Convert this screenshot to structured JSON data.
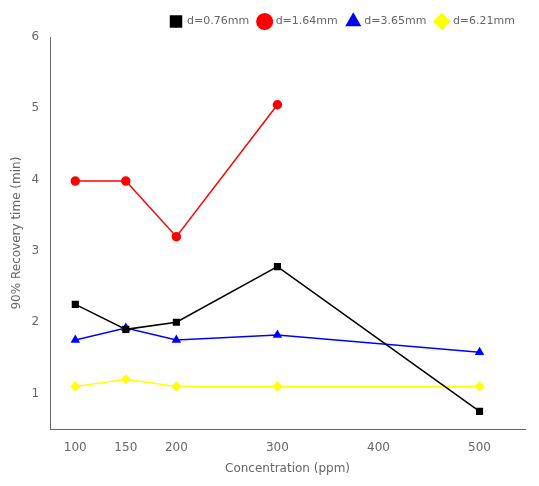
{
  "chart_data": {
    "type": "line",
    "x": [
      100,
      150,
      200,
      300,
      500
    ],
    "series": [
      {
        "name": "d=0.76mm",
        "color": "#000000",
        "marker": "square",
        "values": [
          2.25,
          1.9,
          2.0,
          2.78,
          0.75
        ]
      },
      {
        "name": "d=1.64mm",
        "color": "#ff0000",
        "marker": "circle",
        "values": [
          3.98,
          3.98,
          3.2,
          5.05,
          null
        ]
      },
      {
        "name": "d=3.65mm",
        "color": "#0000ff",
        "marker": "triangle",
        "values": [
          1.75,
          1.92,
          1.75,
          1.82,
          1.58
        ]
      },
      {
        "name": "d=6.21mm",
        "color": "#ffff00",
        "marker": "diamond",
        "values": [
          1.1,
          1.2,
          1.1,
          1.1,
          1.1
        ]
      }
    ],
    "xlabel": "Concentration (ppm)",
    "ylabel": "90% Recovery time (min)",
    "xlim": [
      75,
      545
    ],
    "ylim": [
      0.5,
      6
    ],
    "xticks": [
      100,
      150,
      200,
      300,
      400,
      500
    ],
    "yticks": [
      1,
      2,
      3,
      4,
      5,
      6
    ],
    "legend": "upper right",
    "grid": false
  }
}
